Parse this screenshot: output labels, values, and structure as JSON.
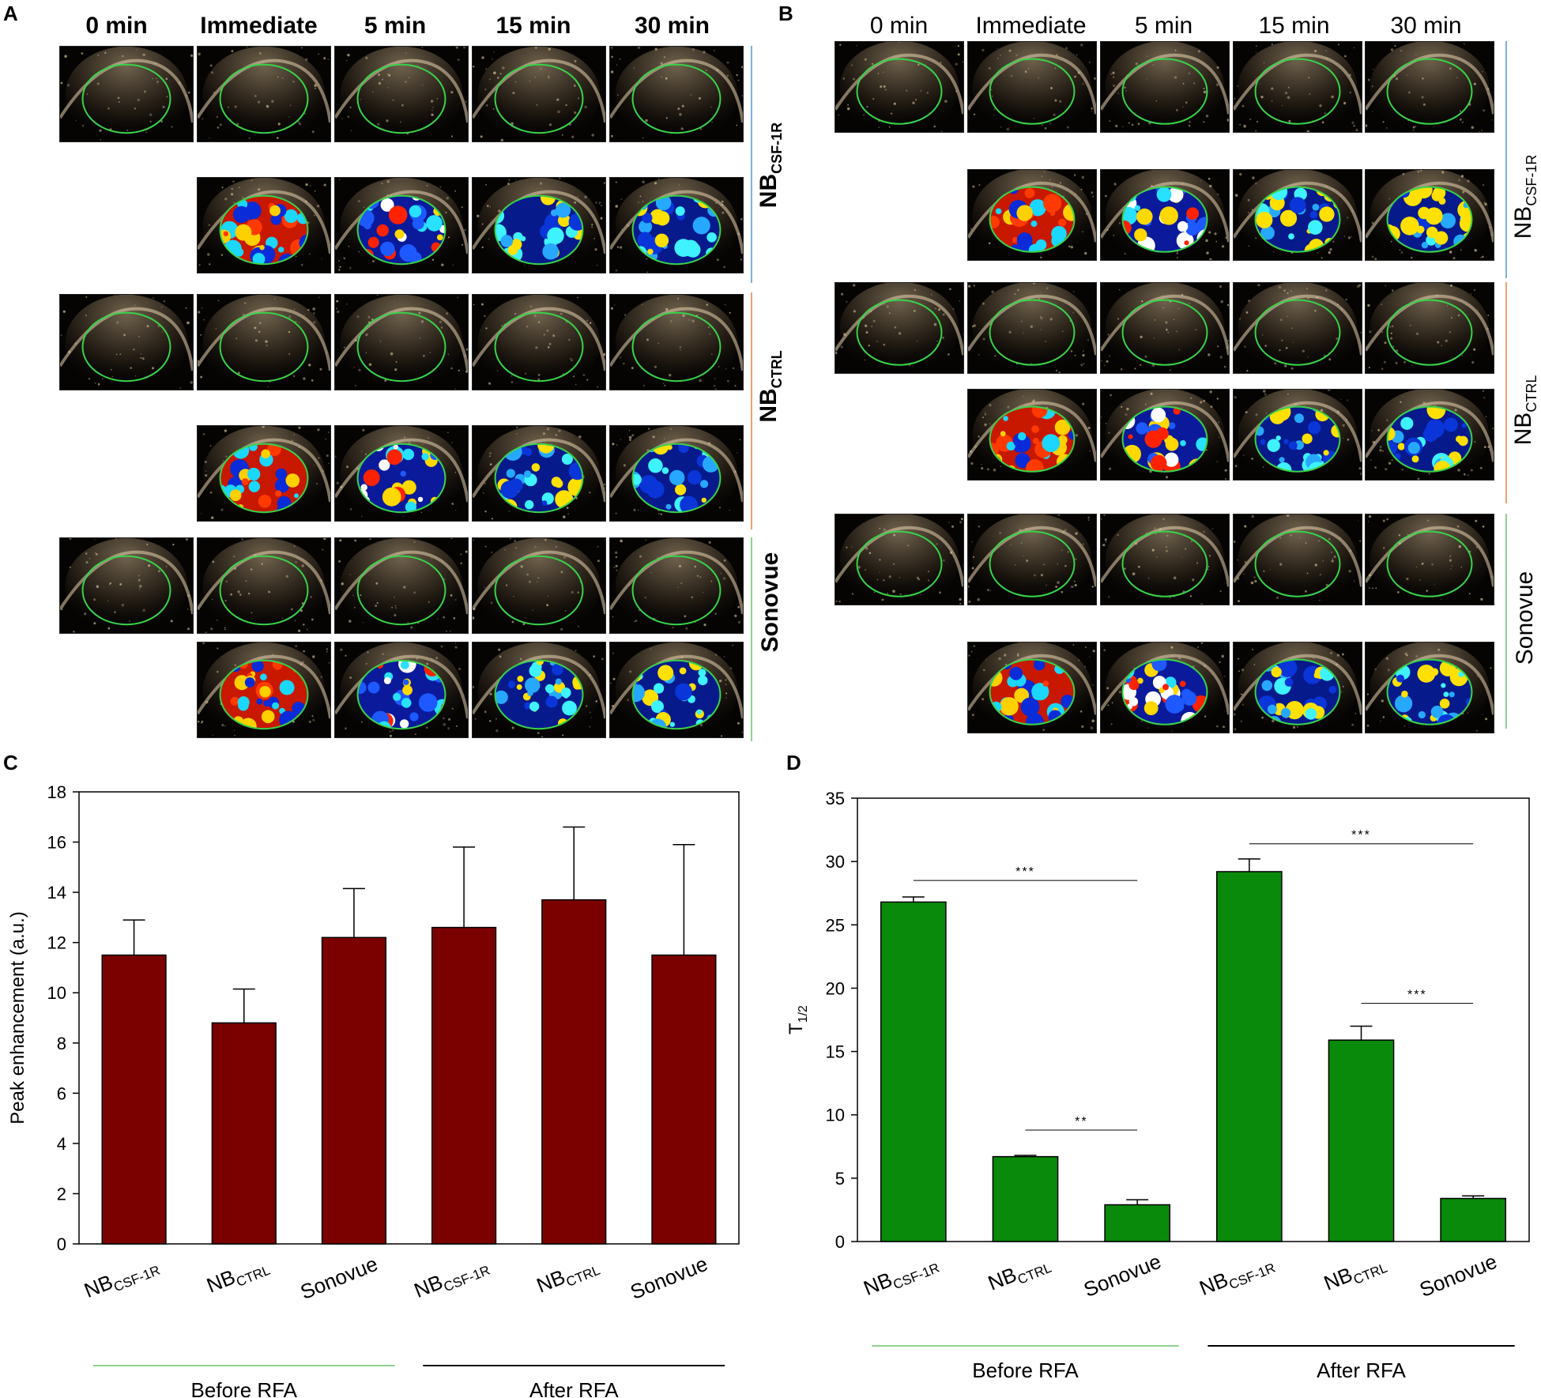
{
  "panels": {
    "A": {
      "label": "A",
      "columns": [
        "0 min",
        "Immediate",
        "5 min",
        "15 min",
        "30 min"
      ],
      "groups": [
        {
          "name": "NB",
          "sub": "CSF-1R",
          "color": "#7fb0df"
        },
        {
          "name": "NB",
          "sub": "CTRL",
          "color": "#f0a070"
        },
        {
          "name": "Sonovue",
          "sub": "",
          "color": "#8fd08f"
        }
      ]
    },
    "B": {
      "label": "B",
      "columns": [
        "0 min",
        "Immediate",
        "5 min",
        "15 min",
        "30 min"
      ],
      "groups": [
        {
          "name": "NB",
          "sub": "CSF-1R",
          "color": "#7fb0df"
        },
        {
          "name": "NB",
          "sub": "CTRL",
          "color": "#f0a070"
        },
        {
          "name": "Sonovue",
          "sub": "",
          "color": "#8fd08f"
        }
      ]
    },
    "C": {
      "label": "C"
    },
    "D": {
      "label": "D"
    }
  },
  "chart_data": [
    {
      "type": "bar",
      "panel": "C",
      "categories": [
        {
          "main": "NB",
          "sub": "CSF-1R"
        },
        {
          "main": "NB",
          "sub": "CTRL"
        },
        {
          "main": "Sonovue",
          "sub": ""
        },
        {
          "main": "NB",
          "sub": "CSF-1R"
        },
        {
          "main": "NB",
          "sub": "CTRL"
        },
        {
          "main": "Sonovue",
          "sub": ""
        }
      ],
      "values": [
        11.5,
        8.8,
        12.2,
        12.6,
        13.7,
        11.5
      ],
      "errors": [
        1.4,
        1.35,
        1.95,
        3.2,
        2.9,
        4.4
      ],
      "ylabel": "Peak enhancement (a.u.)",
      "ylim": [
        0,
        18
      ],
      "yticks": [
        0,
        2,
        4,
        6,
        8,
        10,
        12,
        14,
        16,
        18
      ],
      "bar_color": "#7b0000",
      "groups": [
        {
          "label": "Before RFA",
          "line_color": "#8fd08f"
        },
        {
          "label": "After RFA",
          "line_color": "#000000"
        }
      ],
      "significance": []
    },
    {
      "type": "bar",
      "panel": "D",
      "categories": [
        {
          "main": "NB",
          "sub": "CSF-1R"
        },
        {
          "main": "NB",
          "sub": "CTRL"
        },
        {
          "main": "Sonovue",
          "sub": ""
        },
        {
          "main": "NB",
          "sub": "CSF-1R"
        },
        {
          "main": "NB",
          "sub": "CTRL"
        },
        {
          "main": "Sonovue",
          "sub": ""
        }
      ],
      "values": [
        26.8,
        6.7,
        2.9,
        29.2,
        15.9,
        3.4
      ],
      "errors": [
        0.4,
        0.1,
        0.4,
        1.0,
        1.1,
        0.2
      ],
      "ylabel": "T",
      "ylabel_sub": "1/2",
      "ylim": [
        0,
        35
      ],
      "yticks": [
        0,
        5,
        10,
        15,
        20,
        25,
        30,
        35
      ],
      "bar_color": "#0a8a0a",
      "groups": [
        {
          "label": "Before RFA",
          "line_color": "#8fd08f"
        },
        {
          "label": "After RFA",
          "line_color": "#000000"
        }
      ],
      "significance": [
        {
          "from": 0,
          "to": 2,
          "y": 28.5,
          "text": "***"
        },
        {
          "from": 1,
          "to": 2,
          "y": 8.8,
          "text": "**"
        },
        {
          "from": 3,
          "to": 5,
          "y": 31.4,
          "text": "***"
        },
        {
          "from": 4,
          "to": 5,
          "y": 18.8,
          "text": "***"
        }
      ]
    }
  ]
}
